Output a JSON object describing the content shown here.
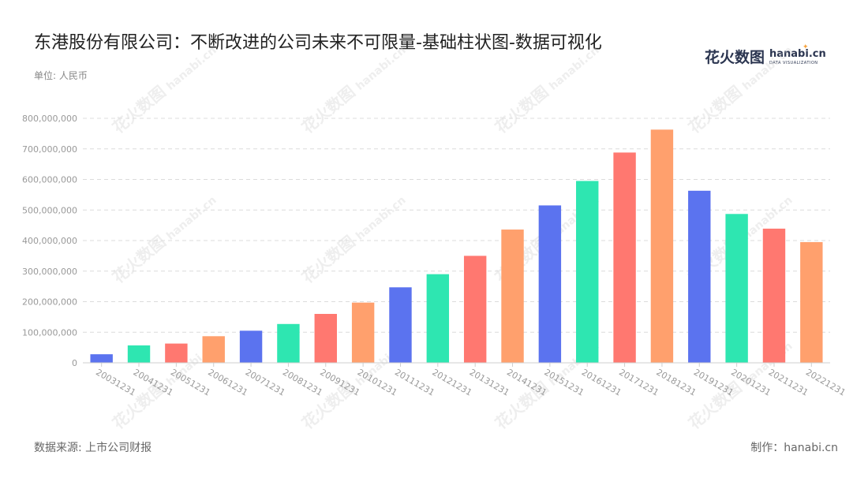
{
  "header": {
    "title": "东港股份有限公司：不断改进的公司未来不可限量-基础柱状图-数据可视化",
    "unit": "单位: 人民币"
  },
  "logo": {
    "cn": "花火数图",
    "en": "hanabi.cn",
    "sub": "DATA VISUALIZATION",
    "star_color": "#f6a23c"
  },
  "watermark": {
    "cn": "花火数图",
    "en": "hanabi.cn"
  },
  "footer": {
    "source": "数据来源: 上市公司财报",
    "maker": "制作：hanabi.cn"
  },
  "chart_data": {
    "type": "bar",
    "title": "东港股份有限公司：不断改进的公司未来不可限量-基础柱状图-数据可视化",
    "xlabel": "",
    "ylabel": "",
    "categories": [
      "20031231",
      "20041231",
      "20051231",
      "20061231",
      "20071231",
      "20081231",
      "20091231",
      "20101231",
      "20111231",
      "20121231",
      "20131231",
      "20141231",
      "20151231",
      "20161231",
      "20171231",
      "20181231",
      "20191231",
      "20201231",
      "20211231",
      "20221231"
    ],
    "values": [
      28000000,
      57000000,
      63000000,
      87000000,
      105000000,
      127000000,
      160000000,
      197000000,
      247000000,
      290000000,
      350000000,
      436000000,
      515000000,
      595000000,
      688000000,
      763000000,
      563000000,
      487000000,
      439000000,
      395000000
    ],
    "ylim": [
      0,
      800000000
    ],
    "yticks": [
      0,
      100000000,
      200000000,
      300000000,
      400000000,
      500000000,
      600000000,
      700000000,
      800000000
    ],
    "ytick_labels": [
      "0",
      "100,000,000",
      "200,000,000",
      "300,000,000",
      "400,000,000",
      "500,000,000",
      "600,000,000",
      "700,000,000",
      "800,000,000"
    ],
    "colors": [
      "#5b73ef",
      "#2ee6b1",
      "#ff7870",
      "#ffa06d"
    ],
    "grid": true,
    "grid_style": "dashed",
    "legend": "none"
  }
}
